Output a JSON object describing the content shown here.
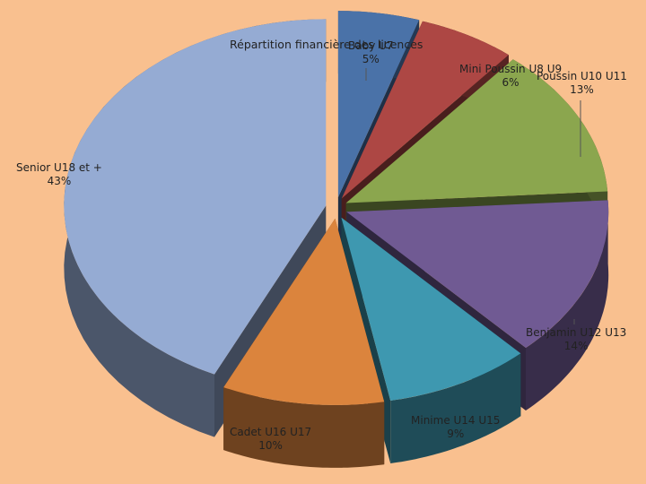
{
  "chart_data": {
    "type": "pie",
    "title": "Répartition financière des licences",
    "slices": [
      {
        "name": "Baby U7",
        "value": 5,
        "label": "5%",
        "color": "#4a72a8"
      },
      {
        "name": "Mini Poussin U8 U9",
        "value": 6,
        "label": "6%",
        "color": "#ad4744"
      },
      {
        "name": "Poussin U10 U11",
        "value": 13,
        "label": "13%",
        "color": "#8ba64e"
      },
      {
        "name": "Benjamin U12 U13",
        "value": 14,
        "label": "14%",
        "color": "#705a93"
      },
      {
        "name": "Minime U14 U15",
        "value": 9,
        "label": "9%",
        "color": "#3e98b0"
      },
      {
        "name": "Cadet U16 U17",
        "value": 10,
        "label": "10%",
        "color": "#db843d"
      },
      {
        "name": "Senior  U18 et +",
        "value": 43,
        "label": "43%",
        "color": "#95abd3"
      }
    ],
    "legend": "none"
  }
}
